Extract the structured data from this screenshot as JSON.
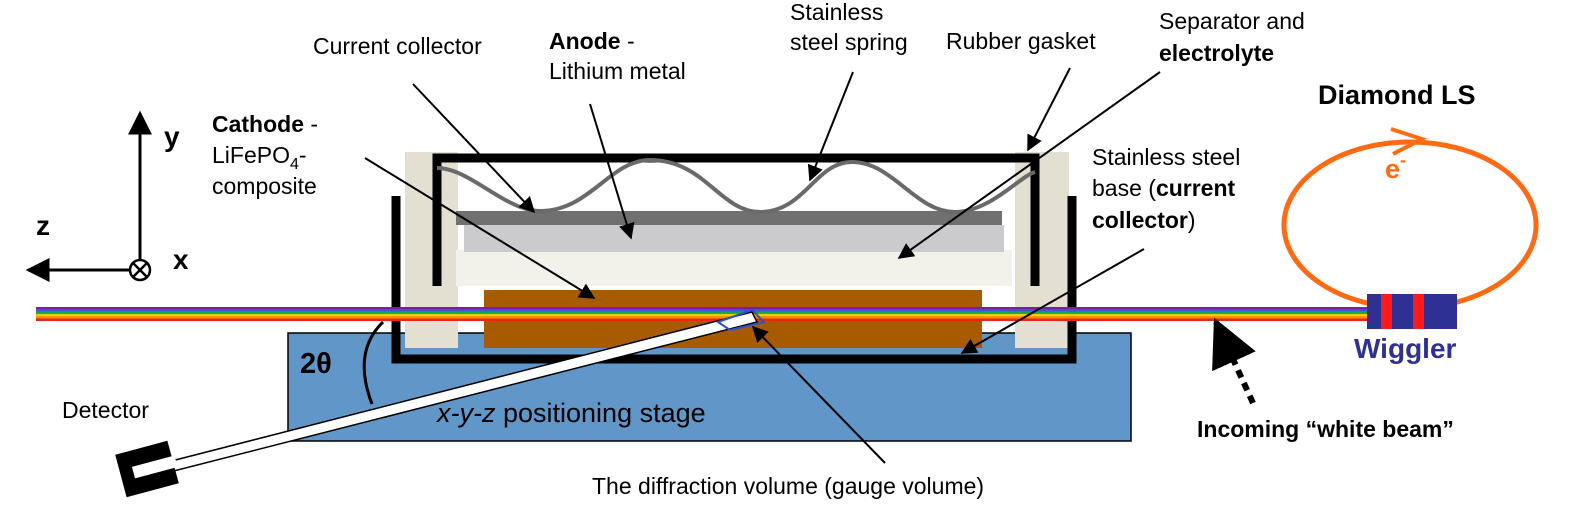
{
  "labels": {
    "current_collector": "Current collector",
    "anode_bold": "Anode",
    "anode_dash": " -",
    "anode_sub": "Lithium metal",
    "spring_l1": "Stainless",
    "spring_l2": "steel spring",
    "gasket": "Rubber gasket",
    "separator_l1": "Separator and",
    "separator_l2": "electrolyte",
    "cathode_bold": "Cathode",
    "cathode_dash": " -",
    "cathode_l2a": "LiFePO",
    "cathode_l2sub": "4",
    "cathode_l2b": "-",
    "cathode_l3": "composite",
    "base_l1": "Stainless steel",
    "base_l2a": "base (",
    "base_l2b": "current",
    "base_l3a": "collector",
    "base_l3b": ")",
    "axis_y": "y",
    "axis_z": "z",
    "axis_x": "x",
    "two_theta": "2θ",
    "detector": "Detector",
    "stage_italic": "x-y-z",
    "stage_rest": " positioning stage",
    "diffraction": "The diffraction volume (gauge volume)",
    "diamond": "Diamond LS",
    "electron": "e",
    "electron_sup": "-",
    "wiggler": "Wiggler",
    "incoming": "Incoming “white beam”"
  },
  "colors": {
    "stage": "#6196c8",
    "cathode": "#a85a00",
    "anode": "#cbcbcd",
    "current_collector": "#707070",
    "separator": "#f2f2ea",
    "gasket": "#e3e0d2",
    "orbit": "#ff6a13",
    "wiggler": "#2e3192",
    "wiggler_red": "#ff1a1a",
    "beam": [
      "#7a1f9e",
      "#3d5bd9",
      "#1aa34a",
      "#e6d000",
      "#ff8a00",
      "#e8261c"
    ]
  }
}
